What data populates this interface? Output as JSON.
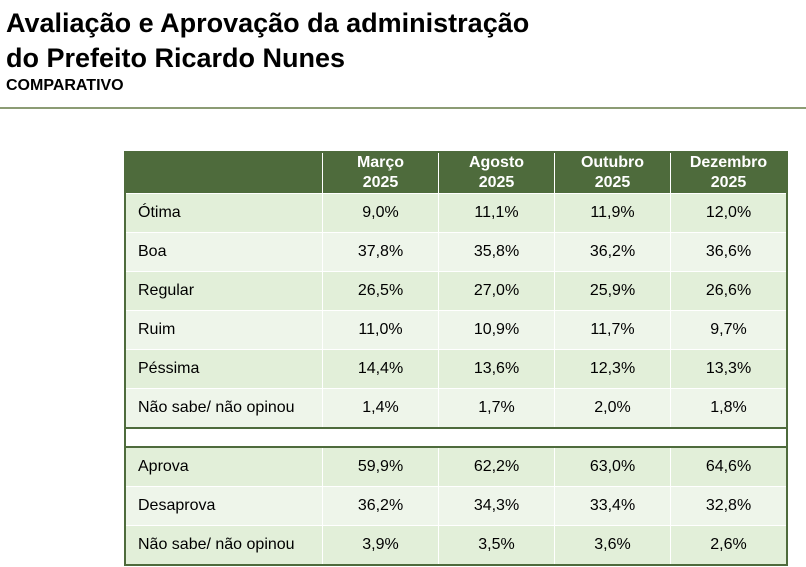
{
  "header": {
    "title_lines": [
      "Avaliação e Aprovação da administração",
      "do Prefeito Ricardo Nunes"
    ],
    "subtitle": "COMPARATIVO"
  },
  "table": {
    "columns": [
      {
        "month": "Março",
        "year": "2025"
      },
      {
        "month": "Agosto",
        "year": "2025"
      },
      {
        "month": "Outubro",
        "year": "2025"
      },
      {
        "month": "Dezembro",
        "year": "2025"
      }
    ],
    "sections": [
      {
        "rows": [
          [
            "Ótima",
            "9,0%",
            "11,1%",
            "11,9%",
            "12,0%"
          ],
          [
            "Boa",
            "37,8%",
            "35,8%",
            "36,2%",
            "36,6%"
          ],
          [
            "Regular",
            "26,5%",
            "27,0%",
            "25,9%",
            "26,6%"
          ],
          [
            "Ruim",
            "11,0%",
            "10,9%",
            "11,7%",
            "9,7%"
          ],
          [
            "Péssima",
            "14,4%",
            "13,6%",
            "12,3%",
            "13,3%"
          ],
          [
            "Não sabe/ não opinou",
            "1,4%",
            "1,7%",
            "2,0%",
            "1,8%"
          ]
        ]
      },
      {
        "rows": [
          [
            "Aprova",
            "59,9%",
            "62,2%",
            "63,0%",
            "64,6%"
          ],
          [
            "Desaprova",
            "36,2%",
            "34,3%",
            "33,4%",
            "32,8%"
          ],
          [
            "Não sabe/ não opinou",
            "3,9%",
            "3,5%",
            "3,6%",
            "2,6%"
          ]
        ]
      }
    ]
  }
}
